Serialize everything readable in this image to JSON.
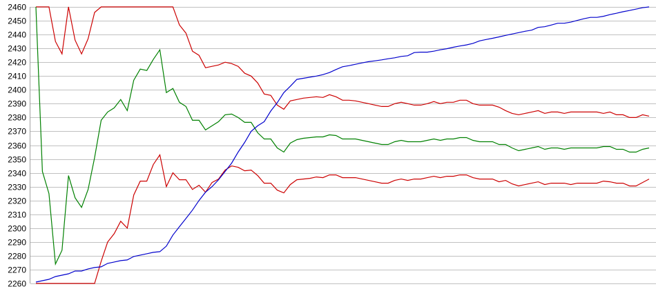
{
  "chart_data": {
    "type": "line",
    "title": "",
    "xlabel": "",
    "ylabel": "",
    "ylim": [
      2260,
      2460
    ],
    "yticks": [
      "2260",
      "2270",
      "2280",
      "2290",
      "2300",
      "2310",
      "2320",
      "2330",
      "2340",
      "2350",
      "2360",
      "2370",
      "2380",
      "2390",
      "2400",
      "2410",
      "2420",
      "2430",
      "2440",
      "2450",
      "2460"
    ],
    "grid": "horizontal",
    "legend": "none",
    "series": [
      {
        "color": "#cc0000",
        "values": [
          2460,
          2460,
          2460,
          2435,
          2426,
          2460,
          2436,
          2426,
          2437,
          2456,
          2460,
          2460,
          2460,
          2460,
          2460,
          2460,
          2460,
          2460,
          2460,
          2460,
          2460,
          2460,
          2447,
          2441,
          2428,
          2425,
          2416,
          2417,
          2418,
          2420,
          2419,
          2417,
          2412,
          2410,
          2405,
          2397,
          2396,
          2389,
          2386,
          2392,
          2393,
          2394,
          2394.5,
          2395,
          2394.5,
          2396.5,
          2395,
          2392.5,
          2392.5,
          2392,
          2391,
          2390,
          2389,
          2388,
          2388,
          2390,
          2391,
          2390,
          2389,
          2389,
          2390,
          2391.5,
          2390,
          2391,
          2391,
          2392.5,
          2392.5,
          2390,
          2389,
          2389,
          2389,
          2387.5,
          2385,
          2383,
          2382,
          2383,
          2384,
          2385,
          2383,
          2384,
          2384,
          2383,
          2384,
          2384,
          2384,
          2384,
          2384,
          2383,
          2384,
          2382,
          2382,
          2380,
          2380,
          2382,
          2381
        ]
      },
      {
        "color": "#008000",
        "values": [
          2460,
          2341,
          2325,
          2274,
          2284,
          2338,
          2322,
          2315,
          2328,
          2351,
          2378,
          2384,
          2387,
          2393,
          2385,
          2407,
          2415,
          2414,
          2422,
          2429,
          2398,
          2401,
          2391,
          2388,
          2378,
          2378,
          2371,
          2374,
          2377,
          2382,
          2382.5,
          2380,
          2376.5,
          2376.5,
          2369,
          2364.5,
          2364.5,
          2358,
          2355,
          2361.5,
          2364,
          2365,
          2365.5,
          2366,
          2366,
          2367.5,
          2367,
          2364.5,
          2364.5,
          2364.5,
          2363.5,
          2362.5,
          2361.5,
          2360.5,
          2360.5,
          2362.5,
          2363.5,
          2362.5,
          2362.5,
          2362.5,
          2363.5,
          2364.5,
          2363.5,
          2364.5,
          2364.5,
          2365.5,
          2365.5,
          2363.5,
          2362.5,
          2362.5,
          2362.5,
          2360.5,
          2360.5,
          2358,
          2356,
          2357,
          2358,
          2359,
          2357,
          2358,
          2358,
          2357,
          2358,
          2358,
          2358,
          2358,
          2358,
          2359,
          2359,
          2357,
          2357,
          2355,
          2355,
          2357,
          2358
        ]
      },
      {
        "color": "#cc0000",
        "values": [
          2260,
          2260,
          2260,
          2260,
          2260,
          2260,
          2260,
          2260,
          2260,
          2260,
          2276,
          2290,
          2296,
          2305,
          2300,
          2324,
          2334,
          2334,
          2346,
          2353,
          2330,
          2340,
          2335,
          2335,
          2328,
          2331,
          2326,
          2333,
          2335.5,
          2342,
          2345,
          2344,
          2341.5,
          2342,
          2338,
          2332.5,
          2332.5,
          2327.5,
          2325.5,
          2331.5,
          2335,
          2335.5,
          2336,
          2337,
          2336.5,
          2338.5,
          2338.5,
          2336.5,
          2336.5,
          2336.5,
          2335.5,
          2334.5,
          2333.5,
          2332.5,
          2332.5,
          2334.5,
          2335.5,
          2334.5,
          2335.5,
          2335.5,
          2336.5,
          2337.5,
          2336.5,
          2337.5,
          2337.5,
          2338.5,
          2338.5,
          2336.5,
          2335.5,
          2335.5,
          2335.5,
          2333.5,
          2334.5,
          2332,
          2330.5,
          2331.5,
          2332.5,
          2333.5,
          2331.5,
          2332.5,
          2332.5,
          2332.5,
          2331.5,
          2332.5,
          2332.5,
          2332.5,
          2332.5,
          2334,
          2333.5,
          2332.5,
          2332.5,
          2330.5,
          2330.5,
          2333,
          2335.5
        ]
      },
      {
        "color": "#0000cc",
        "values": [
          2261,
          2262,
          2263,
          2265,
          2266,
          2267,
          2269,
          2269,
          2270.5,
          2271.5,
          2272,
          2274.5,
          2275.5,
          2276.5,
          2277,
          2279.5,
          2280.5,
          2281.5,
          2282.5,
          2283,
          2287,
          2295,
          2301,
          2307,
          2313,
          2320,
          2326,
          2330,
          2335,
          2341,
          2347,
          2355,
          2362,
          2370,
          2374,
          2377,
          2384.7,
          2390.7,
          2398,
          2402.6,
          2407.6,
          2408.4,
          2409.2,
          2410,
          2411,
          2412.5,
          2414.7,
          2416.7,
          2417.5,
          2418.5,
          2419.5,
          2420.4,
          2421,
          2421.7,
          2422.5,
          2423.2,
          2424.2,
          2424.7,
          2427,
          2427.3,
          2427.3,
          2428,
          2429,
          2429.8,
          2430.8,
          2431.7,
          2432.5,
          2433.6,
          2435.4,
          2436.4,
          2437.3,
          2438.3,
          2439.4,
          2440.4,
          2441.4,
          2442.4,
          2443.2,
          2445.2,
          2445.7,
          2446.9,
          2448.2,
          2448.2,
          2449,
          2450.2,
          2451.4,
          2452.4,
          2452.4,
          2453.2,
          2454.4,
          2455.4,
          2456.5,
          2457.4,
          2458.4,
          2459.4,
          2460
        ]
      }
    ]
  }
}
